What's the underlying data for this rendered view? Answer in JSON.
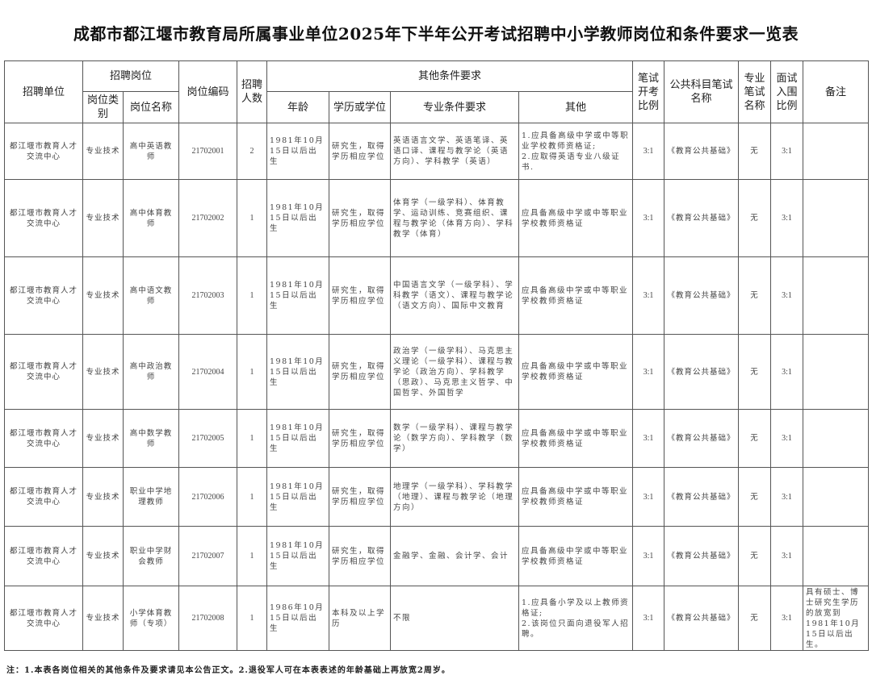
{
  "title": "成都市都江堰市教育局所属事业单位2025年下半年公开考试招聘中小学教师岗位和条件要求一览表",
  "headers": {
    "unit": "招聘单位",
    "position_group": "招聘岗位",
    "category": "岗位类别",
    "name": "岗位名称",
    "code": "岗位编码",
    "count": "招聘人数",
    "other_group": "其他条件要求",
    "age": "年龄",
    "education": "学历或学位",
    "major": "专业条件要求",
    "other": "其他",
    "exam_ratio": "笔试开考比例",
    "public_exam": "公共科目笔试名称",
    "pro_exam": "专业笔试名称",
    "interview_ratio": "面试入围比例",
    "remark": "备注"
  },
  "rows": [
    {
      "unit": "都江堰市教育人才交流中心",
      "category": "专业技术",
      "name": "高中英语教师",
      "code": "21702001",
      "count": "2",
      "age": "1981年10月15日以后出生",
      "education": "研究生，取得学历相应学位",
      "major": "英语语言文学、英语笔译、英语口译、课程与教学论（英语方向）、学科教学（英语）",
      "other": "1.应具备高级中学或中等职业学校教师资格证;\n2.应取得英语专业八级证书.",
      "exam_ratio": "3:1",
      "public_exam": "《教育公共基础》",
      "pro_exam": "无",
      "interview_ratio": "3:1",
      "remark": ""
    },
    {
      "unit": "都江堰市教育人才交流中心",
      "category": "专业技术",
      "name": "高中体育教师",
      "code": "21702002",
      "count": "1",
      "age": "1981年10月15日以后出生",
      "education": "研究生，取得学历相应学位",
      "major": "体育学（一级学科）、体育教学、运动训练、竞赛组织、课程与教学论（体育方向）、学科教学（体育）",
      "other": "应具备高级中学或中等职业学校教师资格证",
      "exam_ratio": "3:1",
      "public_exam": "《教育公共基础》",
      "pro_exam": "无",
      "interview_ratio": "3:1",
      "remark": ""
    },
    {
      "unit": "都江堰市教育人才交流中心",
      "category": "专业技术",
      "name": "高中语文教师",
      "code": "21702003",
      "count": "1",
      "age": "1981年10月15日以后出生",
      "education": "研究生，取得学历相应学位",
      "major": "中国语言文学（一级学科）、学科教学（语文）、课程与教学论（语文方向）、国际中文教育",
      "other": "应具备高级中学或中等职业学校教师资格证",
      "exam_ratio": "3:1",
      "public_exam": "《教育公共基础》",
      "pro_exam": "无",
      "interview_ratio": "3:1",
      "remark": ""
    },
    {
      "unit": "都江堰市教育人才交流中心",
      "category": "专业技术",
      "name": "高中政治教师",
      "code": "21702004",
      "count": "1",
      "age": "1981年10月15日以后出生",
      "education": "研究生，取得学历相应学位",
      "major": "政治学（一级学科）、马克思主义理论（一级学科）、课程与教学论（政治方向）、学科教学（思政）、马克思主义哲学、中国哲学、外国哲学",
      "other": "应具备高级中学或中等职业学校教师资格证",
      "exam_ratio": "3:1",
      "public_exam": "《教育公共基础》",
      "pro_exam": "无",
      "interview_ratio": "3:1",
      "remark": ""
    },
    {
      "unit": "都江堰市教育人才交流中心",
      "category": "专业技术",
      "name": "高中数学教师",
      "code": "21702005",
      "count": "1",
      "age": "1981年10月15日以后出生",
      "education": "研究生，取得学历相应学位",
      "major": "数学（一级学科）、课程与教学论（数学方向）、学科教学（数学）",
      "other": "应具备高级中学或中等职业学校教师资格证",
      "exam_ratio": "3:1",
      "public_exam": "《教育公共基础》",
      "pro_exam": "无",
      "interview_ratio": "3:1",
      "remark": ""
    },
    {
      "unit": "都江堰市教育人才交流中心",
      "category": "专业技术",
      "name": "职业中学地理教师",
      "code": "21702006",
      "count": "1",
      "age": "1981年10月15日以后出生",
      "education": "研究生，取得学历相应学位",
      "major": "地理学（一级学科）、学科教学（地理）、课程与教学论（地理方向）",
      "other": "应具备高级中学或中等职业学校教师资格证",
      "exam_ratio": "3:1",
      "public_exam": "《教育公共基础》",
      "pro_exam": "无",
      "interview_ratio": "3:1",
      "remark": ""
    },
    {
      "unit": "都江堰市教育人才交流中心",
      "category": "专业技术",
      "name": "职业中学财会教师",
      "code": "21702007",
      "count": "1",
      "age": "1981年10月15日以后出生",
      "education": "研究生，取得学历相应学位",
      "major": "金融学、金融、会计学、会计",
      "other": "应具备高级中学或中等职业学校教师资格证",
      "exam_ratio": "3:1",
      "public_exam": "《教育公共基础》",
      "pro_exam": "无",
      "interview_ratio": "3:1",
      "remark": ""
    },
    {
      "unit": "都江堰市教育人才交流中心",
      "category": "专业技术",
      "name": "小学体育教师（专项）",
      "code": "21702008",
      "count": "1",
      "age": "1986年10月15日以后出生",
      "education": "本科及以上学历",
      "major": "不限",
      "other": "1.应具备小学及以上教师资格证;\n2.该岗位只面向退役军人招聘。",
      "exam_ratio": "3:1",
      "public_exam": "《教育公共基础》",
      "pro_exam": "无",
      "interview_ratio": "3:1",
      "remark": "具有硕士、博士研究生学历的放宽到1981年10月15日以后出生。"
    }
  ],
  "footnote": "注：1.本表各岗位相关的其他条件及要求请见本公告正文。2.退役军人可在本表表述的年龄基础上再放宽2周岁。"
}
